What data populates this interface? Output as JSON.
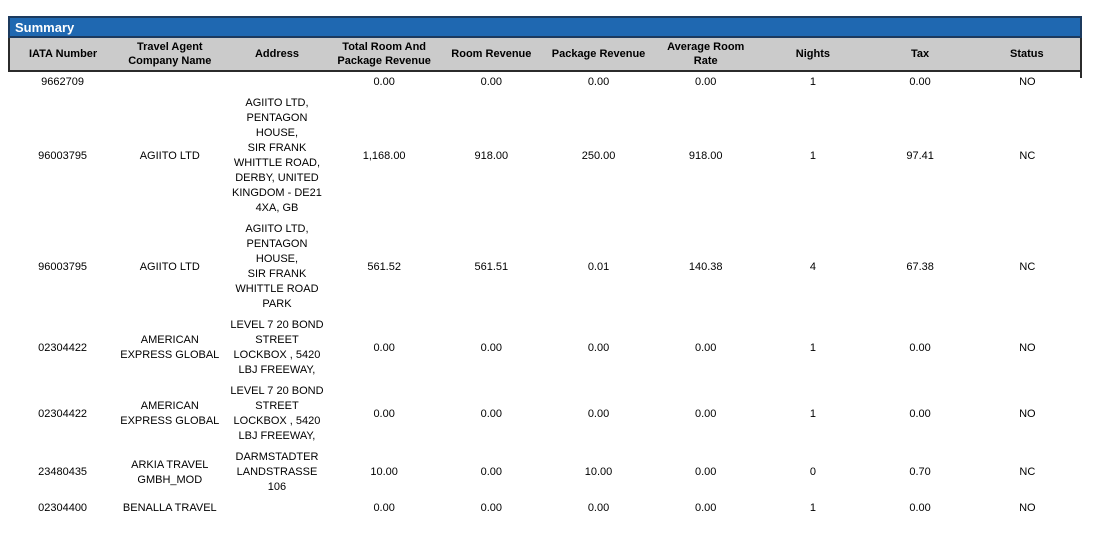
{
  "report": {
    "title": "Summary"
  },
  "colors": {
    "title_bar_bg": "#1F68B1",
    "title_bar_border": "#1C3A5E",
    "header_bg": "#CBCBCB",
    "header_border": "#2B2B2B",
    "title_text": "#FFFFFF",
    "body_text": "#000000"
  },
  "table": {
    "columns": [
      {
        "key": "iata_number",
        "label": "IATA Number"
      },
      {
        "key": "company_name",
        "label": "Travel Agent\nCompany Name"
      },
      {
        "key": "address",
        "label": "Address"
      },
      {
        "key": "total_room_and_package_revenue",
        "label": "Total Room And\nPackage Revenue"
      },
      {
        "key": "room_revenue",
        "label": "Room Revenue"
      },
      {
        "key": "package_revenue",
        "label": "Package Revenue"
      },
      {
        "key": "average_room_rate",
        "label": "Average Room\nRate"
      },
      {
        "key": "nights",
        "label": "Nights"
      },
      {
        "key": "tax",
        "label": "Tax"
      },
      {
        "key": "status",
        "label": "Status"
      }
    ],
    "rows": [
      {
        "cells": [
          "9662709",
          "",
          "",
          "0.00",
          "0.00",
          "0.00",
          "0.00",
          "1",
          "0.00",
          "NO"
        ]
      },
      {
        "cells": [
          "96003795",
          "AGIITO LTD",
          "AGIITO LTD,\nPENTAGON\nHOUSE,\nSIR FRANK\nWHITTLE ROAD,\nDERBY, UNITED\nKINGDOM - DE21\n4XA, GB",
          "1,168.00",
          "918.00",
          "250.00",
          "918.00",
          "1",
          "97.41",
          "NC"
        ]
      },
      {
        "cells": [
          "96003795",
          "AGIITO LTD",
          "AGIITO LTD,\nPENTAGON\nHOUSE,\nSIR FRANK\nWHITTLE ROAD\nPARK",
          "561.52",
          "561.51",
          "0.01",
          "140.38",
          "4",
          "67.38",
          "NC"
        ]
      },
      {
        "cells": [
          "02304422",
          "AMERICAN\nEXPRESS GLOBAL",
          "LEVEL 7 20 BOND\nSTREET\nLOCKBOX , 5420\nLBJ FREEWAY,",
          "0.00",
          "0.00",
          "0.00",
          "0.00",
          "1",
          "0.00",
          "NO"
        ]
      },
      {
        "cells": [
          "02304422",
          "AMERICAN\nEXPRESS GLOBAL",
          "LEVEL 7 20 BOND\nSTREET\nLOCKBOX , 5420\nLBJ FREEWAY,",
          "0.00",
          "0.00",
          "0.00",
          "0.00",
          "1",
          "0.00",
          "NO"
        ]
      },
      {
        "cells": [
          "23480435",
          "ARKIA TRAVEL\nGMBH_MOD",
          "DARMSTADTER\nLANDSTRASSE\n106",
          "10.00",
          "0.00",
          "10.00",
          "0.00",
          "0",
          "0.70",
          "NC"
        ]
      },
      {
        "cells": [
          "02304400",
          "BENALLA TRAVEL",
          "",
          "0.00",
          "0.00",
          "0.00",
          "0.00",
          "1",
          "0.00",
          "NO"
        ]
      }
    ]
  }
}
